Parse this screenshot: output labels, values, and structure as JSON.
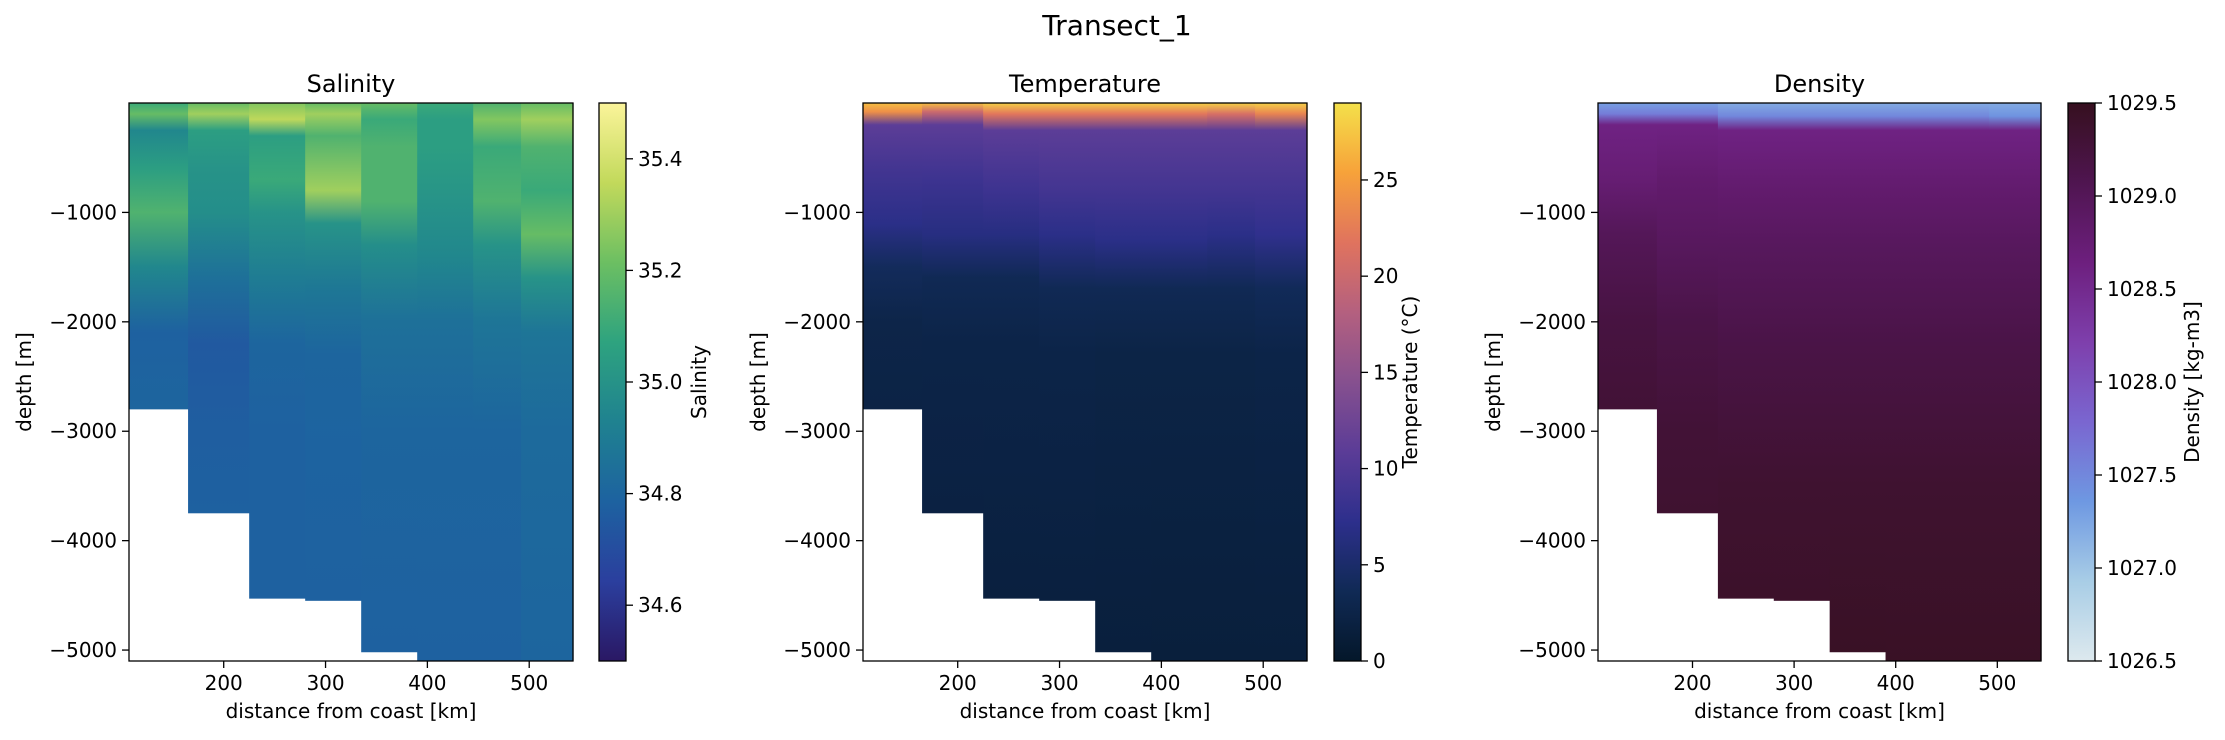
{
  "figure_title": "Transect_1",
  "chart_data": [
    {
      "type": "heatmap",
      "title": "Salinity",
      "xlabel": "distance from coast [km]",
      "ylabel": "depth [m]",
      "xlim": [
        107,
        543
      ],
      "ylim": [
        -5100,
        0
      ],
      "xticks": [
        200,
        300,
        400,
        500
      ],
      "yticks": [
        -1000,
        -2000,
        -3000,
        -4000,
        -5000
      ],
      "colorbar": {
        "label": "Salinity",
        "range": [
          34.5,
          35.5
        ],
        "ticks": [
          34.6,
          34.8,
          35.0,
          35.2,
          35.4
        ],
        "tick_labels": [
          "34.6",
          "34.8",
          "35.0",
          "35.2",
          "35.4"
        ],
        "colormap": [
          "#2a1864",
          "#2b3f9e",
          "#1d62a0",
          "#1f8290",
          "#2ea37f",
          "#6cbf62",
          "#c2d95b",
          "#fbf49a"
        ]
      },
      "stations": [
        {
          "x_start": 107,
          "x_end": 165,
          "bottom": -2800,
          "profile": [
            [
              0,
              35.1
            ],
            [
              -100,
              35.2
            ],
            [
              -250,
              34.95
            ],
            [
              -600,
              35.05
            ],
            [
              -1000,
              35.15
            ],
            [
              -1500,
              34.95
            ],
            [
              -2100,
              34.78
            ],
            [
              -2800,
              34.8
            ]
          ]
        },
        {
          "x_start": 165,
          "x_end": 225,
          "bottom": -3750,
          "profile": [
            [
              0,
              35.2
            ],
            [
              -100,
              35.3
            ],
            [
              -250,
              35.05
            ],
            [
              -600,
              35.0
            ],
            [
              -1000,
              34.98
            ],
            [
              -1600,
              34.85
            ],
            [
              -2200,
              34.75
            ],
            [
              -3000,
              34.77
            ],
            [
              -3750,
              34.78
            ]
          ]
        },
        {
          "x_start": 225,
          "x_end": 280,
          "bottom": -4530,
          "profile": [
            [
              0,
              35.25
            ],
            [
              -150,
              35.35
            ],
            [
              -300,
              35.05
            ],
            [
              -700,
              35.1
            ],
            [
              -1000,
              35.0
            ],
            [
              -1600,
              34.9
            ],
            [
              -2200,
              34.8
            ],
            [
              -3000,
              34.78
            ],
            [
              -4530,
              34.78
            ]
          ]
        },
        {
          "x_start": 280,
          "x_end": 335,
          "bottom": -4550,
          "profile": [
            [
              0,
              35.2
            ],
            [
              -100,
              35.3
            ],
            [
              -300,
              35.15
            ],
            [
              -800,
              35.3
            ],
            [
              -1100,
              35.0
            ],
            [
              -1700,
              34.88
            ],
            [
              -2300,
              34.8
            ],
            [
              -3200,
              34.79
            ],
            [
              -4550,
              34.78
            ]
          ]
        },
        {
          "x_start": 335,
          "x_end": 390,
          "bottom": -5020,
          "profile": [
            [
              0,
              35.2
            ],
            [
              -150,
              35.1
            ],
            [
              -400,
              35.15
            ],
            [
              -900,
              35.15
            ],
            [
              -1300,
              34.98
            ],
            [
              -2000,
              34.85
            ],
            [
              -3000,
              34.8
            ],
            [
              -5020,
              34.78
            ]
          ]
        },
        {
          "x_start": 390,
          "x_end": 445,
          "bottom": -5100,
          "profile": [
            [
              0,
              35.1
            ],
            [
              -150,
              35.05
            ],
            [
              -400,
              35.05
            ],
            [
              -900,
              35.0
            ],
            [
              -1400,
              34.95
            ],
            [
              -2000,
              34.85
            ],
            [
              -3000,
              34.8
            ],
            [
              -5100,
              34.78
            ]
          ]
        },
        {
          "x_start": 445,
          "x_end": 492,
          "bottom": -5100,
          "profile": [
            [
              0,
              35.15
            ],
            [
              -150,
              35.25
            ],
            [
              -400,
              35.1
            ],
            [
              -900,
              35.15
            ],
            [
              -1300,
              35.0
            ],
            [
              -2000,
              34.87
            ],
            [
              -3000,
              34.8
            ],
            [
              -5100,
              34.78
            ]
          ]
        },
        {
          "x_start": 492,
          "x_end": 543,
          "bottom": -5100,
          "profile": [
            [
              0,
              35.2
            ],
            [
              -150,
              35.3
            ],
            [
              -400,
              35.15
            ],
            [
              -800,
              35.1
            ],
            [
              -1200,
              35.2
            ],
            [
              -1600,
              35.0
            ],
            [
              -2100,
              34.87
            ],
            [
              -3000,
              34.82
            ],
            [
              -5100,
              34.8
            ]
          ]
        }
      ]
    },
    {
      "type": "heatmap",
      "title": "Temperature",
      "xlabel": "distance from coast [km]",
      "ylabel": "depth [m]",
      "xlim": [
        107,
        543
      ],
      "ylim": [
        -5100,
        0
      ],
      "xticks": [
        200,
        300,
        400,
        500
      ],
      "yticks": [
        -1000,
        -2000,
        -3000,
        -4000,
        -5000
      ],
      "colorbar": {
        "label": "Temperature (°C)",
        "range": [
          0,
          29
        ],
        "ticks": [
          0,
          5,
          10,
          15,
          20,
          25
        ],
        "tick_labels": [
          "0",
          "5",
          "10",
          "15",
          "20",
          "25"
        ],
        "colormap": [
          "#04172a",
          "#102a55",
          "#2d2f8c",
          "#5b3c97",
          "#86508f",
          "#b4607f",
          "#e0735e",
          "#f7a23a",
          "#f4e04a"
        ]
      },
      "stations": [
        {
          "x_start": 107,
          "x_end": 165,
          "bottom": -2800,
          "profile": [
            [
              0,
              27
            ],
            [
              -80,
              24
            ],
            [
              -200,
              11
            ],
            [
              -600,
              9
            ],
            [
              -1100,
              7
            ],
            [
              -1500,
              4
            ],
            [
              -2000,
              2.6
            ],
            [
              -2800,
              2.3
            ]
          ]
        },
        {
          "x_start": 165,
          "x_end": 225,
          "bottom": -3750,
          "profile": [
            [
              0,
              27
            ],
            [
              -80,
              20
            ],
            [
              -200,
              11
            ],
            [
              -700,
              8.5
            ],
            [
              -1200,
              6.5
            ],
            [
              -1600,
              3.5
            ],
            [
              -2200,
              2.5
            ],
            [
              -3750,
              2
            ]
          ]
        },
        {
          "x_start": 225,
          "x_end": 280,
          "bottom": -4530,
          "profile": [
            [
              0,
              28
            ],
            [
              -100,
              22
            ],
            [
              -250,
              11
            ],
            [
              -800,
              8.5
            ],
            [
              -1200,
              6.5
            ],
            [
              -1600,
              3.5
            ],
            [
              -2200,
              2.5
            ],
            [
              -4530,
              1.8
            ]
          ]
        },
        {
          "x_start": 280,
          "x_end": 335,
          "bottom": -4550,
          "profile": [
            [
              0,
              28
            ],
            [
              -100,
              22
            ],
            [
              -250,
              11
            ],
            [
              -800,
              9
            ],
            [
              -1200,
              7
            ],
            [
              -1700,
              3.5
            ],
            [
              -2300,
              2.5
            ],
            [
              -4550,
              1.8
            ]
          ]
        },
        {
          "x_start": 335,
          "x_end": 390,
          "bottom": -5020,
          "profile": [
            [
              0,
              28
            ],
            [
              -100,
              22
            ],
            [
              -250,
              11
            ],
            [
              -800,
              9
            ],
            [
              -1250,
              7
            ],
            [
              -1700,
              3.5
            ],
            [
              -2300,
              2.4
            ],
            [
              -5020,
              1.6
            ]
          ]
        },
        {
          "x_start": 390,
          "x_end": 445,
          "bottom": -5100,
          "profile": [
            [
              0,
              28
            ],
            [
              -100,
              22
            ],
            [
              -250,
              11
            ],
            [
              -800,
              9
            ],
            [
              -1250,
              7
            ],
            [
              -1700,
              3.5
            ],
            [
              -2300,
              2.4
            ],
            [
              -5100,
              1.5
            ]
          ]
        },
        {
          "x_start": 445,
          "x_end": 492,
          "bottom": -5100,
          "profile": [
            [
              0,
              28
            ],
            [
              -100,
              21
            ],
            [
              -250,
              11
            ],
            [
              -800,
              9
            ],
            [
              -1200,
              7
            ],
            [
              -1700,
              3.5
            ],
            [
              -2300,
              2.4
            ],
            [
              -5100,
              1.5
            ]
          ]
        },
        {
          "x_start": 492,
          "x_end": 543,
          "bottom": -5100,
          "profile": [
            [
              0,
              28
            ],
            [
              -100,
              23
            ],
            [
              -250,
              11
            ],
            [
              -800,
              9
            ],
            [
              -1200,
              7.5
            ],
            [
              -1700,
              3.8
            ],
            [
              -2300,
              2.5
            ],
            [
              -5100,
              1.5
            ]
          ]
        }
      ]
    },
    {
      "type": "heatmap",
      "title": "Density",
      "xlabel": "distance from coast [km]",
      "ylabel": "depth [m]",
      "xlim": [
        107,
        543
      ],
      "ylim": [
        -5100,
        0
      ],
      "xticks": [
        200,
        300,
        400,
        500
      ],
      "yticks": [
        -1000,
        -2000,
        -3000,
        -4000,
        -5000
      ],
      "colorbar": {
        "label": "Density [kg-m3]",
        "range": [
          1026.5,
          1029.5
        ],
        "ticks": [
          1026.5,
          1027.0,
          1027.5,
          1028.0,
          1028.5,
          1029.0,
          1029.5
        ],
        "tick_labels": [
          "1026.5",
          "1027.0",
          "1027.5",
          "1028.0",
          "1028.5",
          "1029.0",
          "1029.5"
        ],
        "colormap": [
          "#dde9ee",
          "#a8cde6",
          "#6e98e2",
          "#7a66d0",
          "#7e3fac",
          "#6d1f7e",
          "#4f1550",
          "#36101f"
        ]
      },
      "stations": [
        {
          "x_start": 107,
          "x_end": 165,
          "bottom": -2800,
          "profile": [
            [
              0,
              1027.3
            ],
            [
              -100,
              1027.6
            ],
            [
              -200,
              1028.6
            ],
            [
              -700,
              1028.75
            ],
            [
              -1200,
              1029.0
            ],
            [
              -2000,
              1029.2
            ],
            [
              -2800,
              1029.3
            ]
          ]
        },
        {
          "x_start": 165,
          "x_end": 225,
          "bottom": -3750,
          "profile": [
            [
              0,
              1027.3
            ],
            [
              -100,
              1027.6
            ],
            [
              -200,
              1028.6
            ],
            [
              -700,
              1028.8
            ],
            [
              -1300,
              1028.95
            ],
            [
              -2000,
              1029.15
            ],
            [
              -3000,
              1029.3
            ],
            [
              -3750,
              1029.35
            ]
          ]
        },
        {
          "x_start": 225,
          "x_end": 280,
          "bottom": -4530,
          "profile": [
            [
              0,
              1027.2
            ],
            [
              -120,
              1027.5
            ],
            [
              -250,
              1028.6
            ],
            [
              -800,
              1028.8
            ],
            [
              -1300,
              1028.95
            ],
            [
              -2200,
              1029.15
            ],
            [
              -3500,
              1029.35
            ],
            [
              -4530,
              1029.4
            ]
          ]
        },
        {
          "x_start": 280,
          "x_end": 335,
          "bottom": -4550,
          "profile": [
            [
              0,
              1027.2
            ],
            [
              -120,
              1027.5
            ],
            [
              -250,
              1028.6
            ],
            [
              -800,
              1028.8
            ],
            [
              -1300,
              1028.95
            ],
            [
              -2200,
              1029.15
            ],
            [
              -3500,
              1029.35
            ],
            [
              -4550,
              1029.4
            ]
          ]
        },
        {
          "x_start": 335,
          "x_end": 390,
          "bottom": -5020,
          "profile": [
            [
              0,
              1027.2
            ],
            [
              -120,
              1027.5
            ],
            [
              -250,
              1028.6
            ],
            [
              -800,
              1028.8
            ],
            [
              -1300,
              1028.95
            ],
            [
              -2200,
              1029.15
            ],
            [
              -3500,
              1029.35
            ],
            [
              -5020,
              1029.45
            ]
          ]
        },
        {
          "x_start": 390,
          "x_end": 445,
          "bottom": -5100,
          "profile": [
            [
              0,
              1027.2
            ],
            [
              -120,
              1027.5
            ],
            [
              -250,
              1028.6
            ],
            [
              -800,
              1028.8
            ],
            [
              -1300,
              1028.95
            ],
            [
              -2200,
              1029.15
            ],
            [
              -3500,
              1029.35
            ],
            [
              -5100,
              1029.45
            ]
          ]
        },
        {
          "x_start": 445,
          "x_end": 492,
          "bottom": -5100,
          "profile": [
            [
              0,
              1027.2
            ],
            [
              -120,
              1027.5
            ],
            [
              -250,
              1028.6
            ],
            [
              -800,
              1028.8
            ],
            [
              -1300,
              1028.95
            ],
            [
              -2200,
              1029.15
            ],
            [
              -3500,
              1029.35
            ],
            [
              -5100,
              1029.45
            ]
          ]
        },
        {
          "x_start": 492,
          "x_end": 543,
          "bottom": -5100,
          "profile": [
            [
              0,
              1027.2
            ],
            [
              -120,
              1027.4
            ],
            [
              -250,
              1028.6
            ],
            [
              -800,
              1028.8
            ],
            [
              -1300,
              1028.95
            ],
            [
              -2200,
              1029.15
            ],
            [
              -3500,
              1029.35
            ],
            [
              -5100,
              1029.45
            ]
          ]
        }
      ]
    }
  ]
}
